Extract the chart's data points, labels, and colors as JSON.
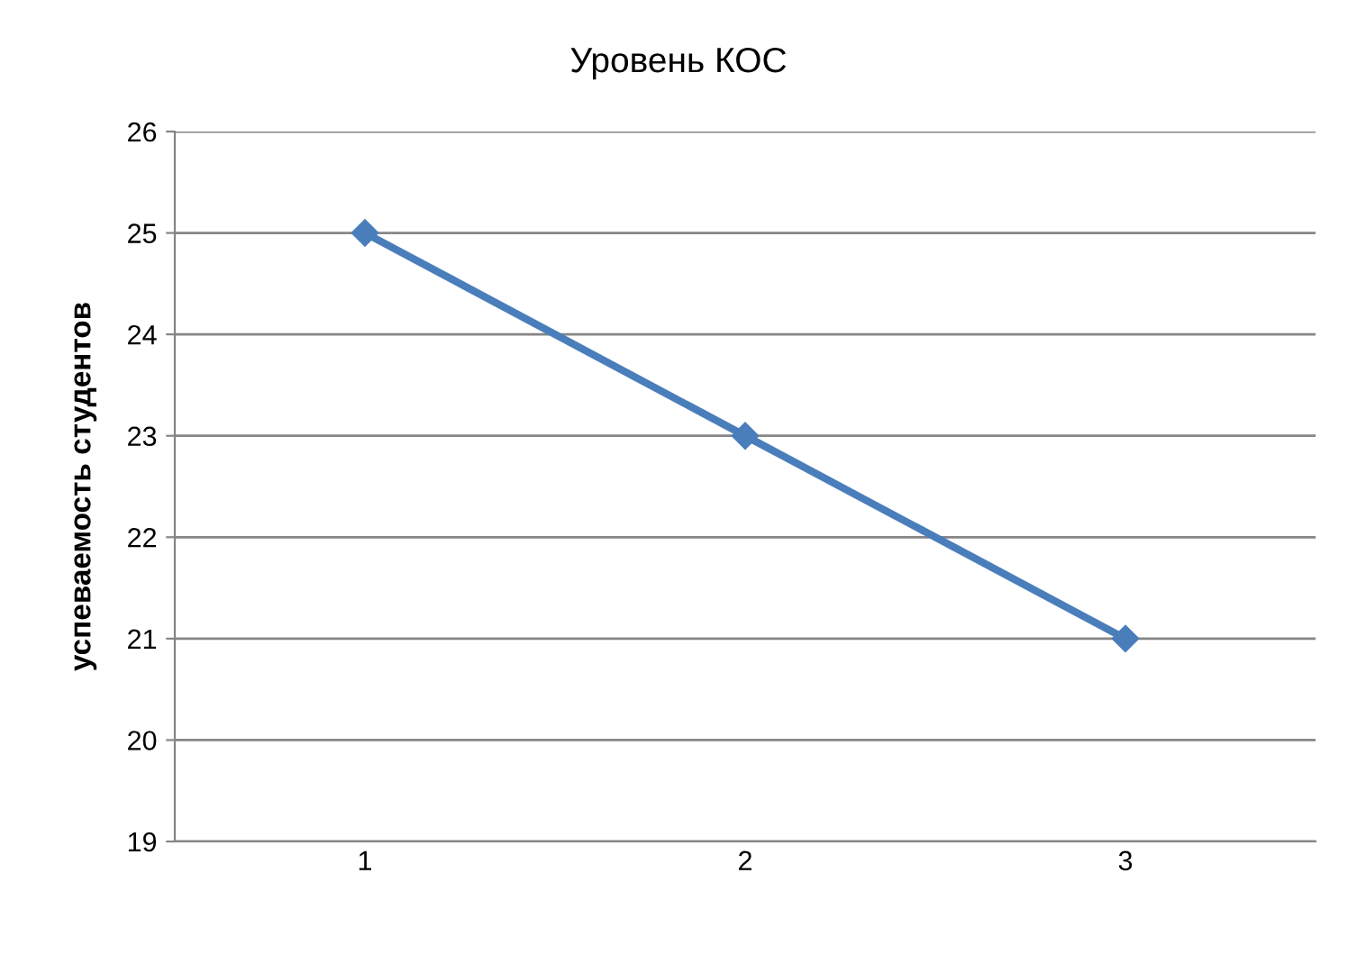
{
  "chart_data": {
    "type": "line",
    "title": "Уровень КОС",
    "ylabel": "успеваемость студентов",
    "categories": [
      "1",
      "2",
      "3"
    ],
    "series": [
      {
        "color": "#4a7ebb",
        "values": [
          25,
          23,
          21
        ]
      }
    ],
    "ylim": [
      19,
      26
    ],
    "yticks": [
      19,
      20,
      21,
      22,
      23,
      24,
      25,
      26
    ],
    "grid": "y",
    "marker": "diamond",
    "line_style": "solid",
    "legend": false
  }
}
